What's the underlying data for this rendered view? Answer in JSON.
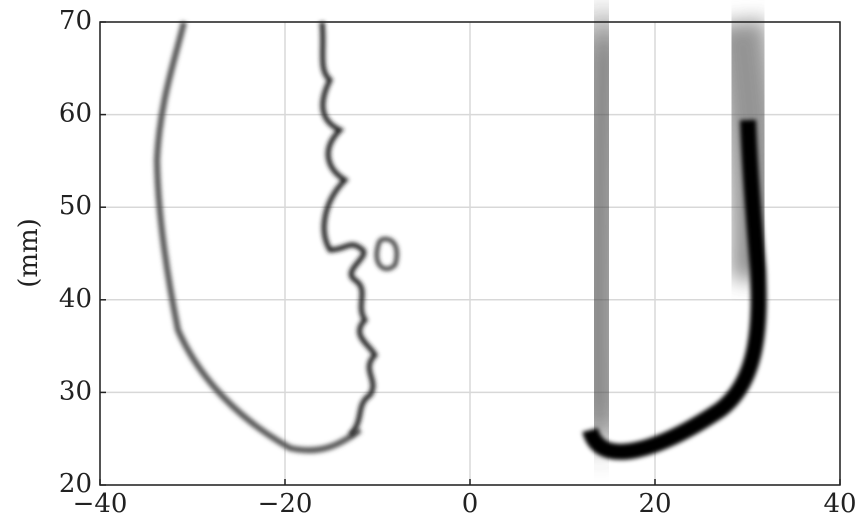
{
  "chart_data": {
    "type": "image",
    "ylabel": "(mm)",
    "xlim": [
      -40,
      40
    ],
    "ylim": [
      20,
      70
    ],
    "xticks": [
      {
        "value": -40,
        "label": "−40"
      },
      {
        "value": -20,
        "label": "−20"
      },
      0,
      20,
      40
    ],
    "yticks": [
      20,
      30,
      40,
      50,
      60,
      70
    ],
    "grid": true
  }
}
